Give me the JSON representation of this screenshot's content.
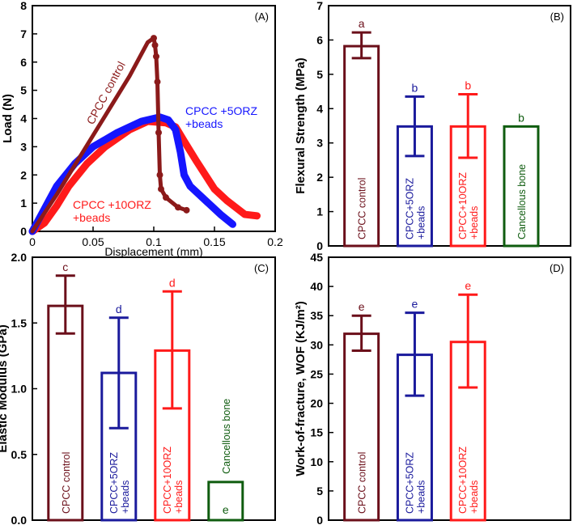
{
  "chart_data": [
    {
      "type": "line",
      "panel": "(A)",
      "xlabel": "Displacement (mm)",
      "ylabel": "Load (N)",
      "xlim": [
        0,
        0.2
      ],
      "ylim": [
        0,
        8
      ],
      "xticks": [
        "0",
        "0.05",
        "0.1",
        "0.15",
        "0.2"
      ],
      "yticks": [
        "0",
        "1",
        "2",
        "3",
        "4",
        "5",
        "6",
        "7",
        "8"
      ],
      "series": [
        {
          "name": "CPCC control",
          "color": "#8b1a1a",
          "x": [
            0,
            0.02,
            0.04,
            0.06,
            0.08,
            0.095,
            0.1,
            0.101,
            0.102,
            0.103,
            0.104,
            0.105,
            0.106,
            0.11,
            0.12,
            0.127
          ],
          "y": [
            0,
            1.3,
            2.7,
            4.1,
            5.5,
            6.7,
            6.85,
            6.6,
            6.2,
            5.3,
            3.5,
            2.0,
            1.5,
            1.2,
            0.85,
            0.75
          ]
        },
        {
          "name": "CPCC +5ORZ +beads",
          "color": "#1515ff",
          "x": [
            0,
            0.01,
            0.02,
            0.035,
            0.05,
            0.07,
            0.09,
            0.105,
            0.112,
            0.118,
            0.122,
            0.125,
            0.13,
            0.14,
            0.155,
            0.165
          ],
          "y": [
            0,
            0.8,
            1.6,
            2.4,
            3.0,
            3.5,
            3.9,
            4.05,
            3.95,
            3.6,
            2.8,
            2.0,
            1.6,
            1.2,
            0.6,
            0.25
          ]
        },
        {
          "name": "CPCC +10ORZ +beads",
          "color": "#ff1a1a",
          "x": [
            0,
            0.01,
            0.02,
            0.03,
            0.045,
            0.06,
            0.08,
            0.095,
            0.11,
            0.118,
            0.125,
            0.135,
            0.15,
            0.16,
            0.175,
            0.185
          ],
          "y": [
            0,
            0.3,
            0.9,
            1.6,
            2.4,
            3.0,
            3.6,
            3.9,
            3.85,
            3.7,
            3.2,
            2.5,
            1.5,
            1.1,
            0.6,
            0.55
          ]
        }
      ],
      "annotations": [
        "CPCC control",
        "CPCC +5ORZ",
        "+beads",
        "CPCC +10ORZ",
        "+beads"
      ]
    },
    {
      "type": "bar",
      "panel": "(B)",
      "ylabel": "Flexural Strength  (MPa)",
      "ylim": [
        0,
        7
      ],
      "yticks": [
        "0",
        "1",
        "2",
        "3",
        "4",
        "5",
        "6",
        "7"
      ],
      "categories": [
        "CPCC control",
        "CPCC+5ORZ +beads",
        "CPCC+10ORZ +beads",
        "Cancellous bone"
      ],
      "values": [
        5.82,
        3.48,
        3.48,
        3.48
      ],
      "err_hi": [
        6.22,
        4.35,
        4.42,
        null
      ],
      "err_lo": [
        5.47,
        2.62,
        2.57,
        null
      ],
      "letters": [
        "a",
        "b",
        "b",
        "b"
      ],
      "colors": [
        "#6b0f1a",
        "#1a1a9c",
        "#ff1a1a",
        "#0f5c0f"
      ]
    },
    {
      "type": "bar",
      "panel": "(C)",
      "ylabel": "Elastic Modulus  (GPa)",
      "ylim": [
        0,
        2
      ],
      "yticks": [
        "0.0",
        "0.5",
        "1.0",
        "1.5",
        "2.0"
      ],
      "categories": [
        "CPCC control",
        "CPCC+5ORZ +beads",
        "CPCC+10ORZ +beads",
        "Cancellous bone"
      ],
      "values": [
        1.63,
        1.12,
        1.29,
        0.29
      ],
      "err_hi": [
        1.86,
        1.54,
        1.74,
        null
      ],
      "err_lo": [
        1.42,
        0.7,
        0.85,
        null
      ],
      "letters": [
        "c",
        "d",
        "d",
        "e"
      ],
      "colors": [
        "#6b0f1a",
        "#1a1a9c",
        "#ff1a1a",
        "#0f5c0f"
      ]
    },
    {
      "type": "bar",
      "panel": "(D)",
      "ylabel": "Work-of-fracture, WOF  (KJ/m²)",
      "ylim": [
        0,
        45
      ],
      "yticks": [
        "0",
        "5",
        "10",
        "15",
        "20",
        "25",
        "30",
        "35",
        "40",
        "45"
      ],
      "categories": [
        "CPCC control",
        "CPCC+5ORZ +beads",
        "CPCC+10ORZ +beads"
      ],
      "values": [
        31.9,
        28.3,
        30.5
      ],
      "err_hi": [
        35.0,
        35.5,
        38.6
      ],
      "err_lo": [
        29.0,
        21.3,
        22.7
      ],
      "letters": [
        "e",
        "e",
        "e"
      ],
      "colors": [
        "#6b0f1a",
        "#1a1a9c",
        "#ff1a1a"
      ]
    }
  ]
}
